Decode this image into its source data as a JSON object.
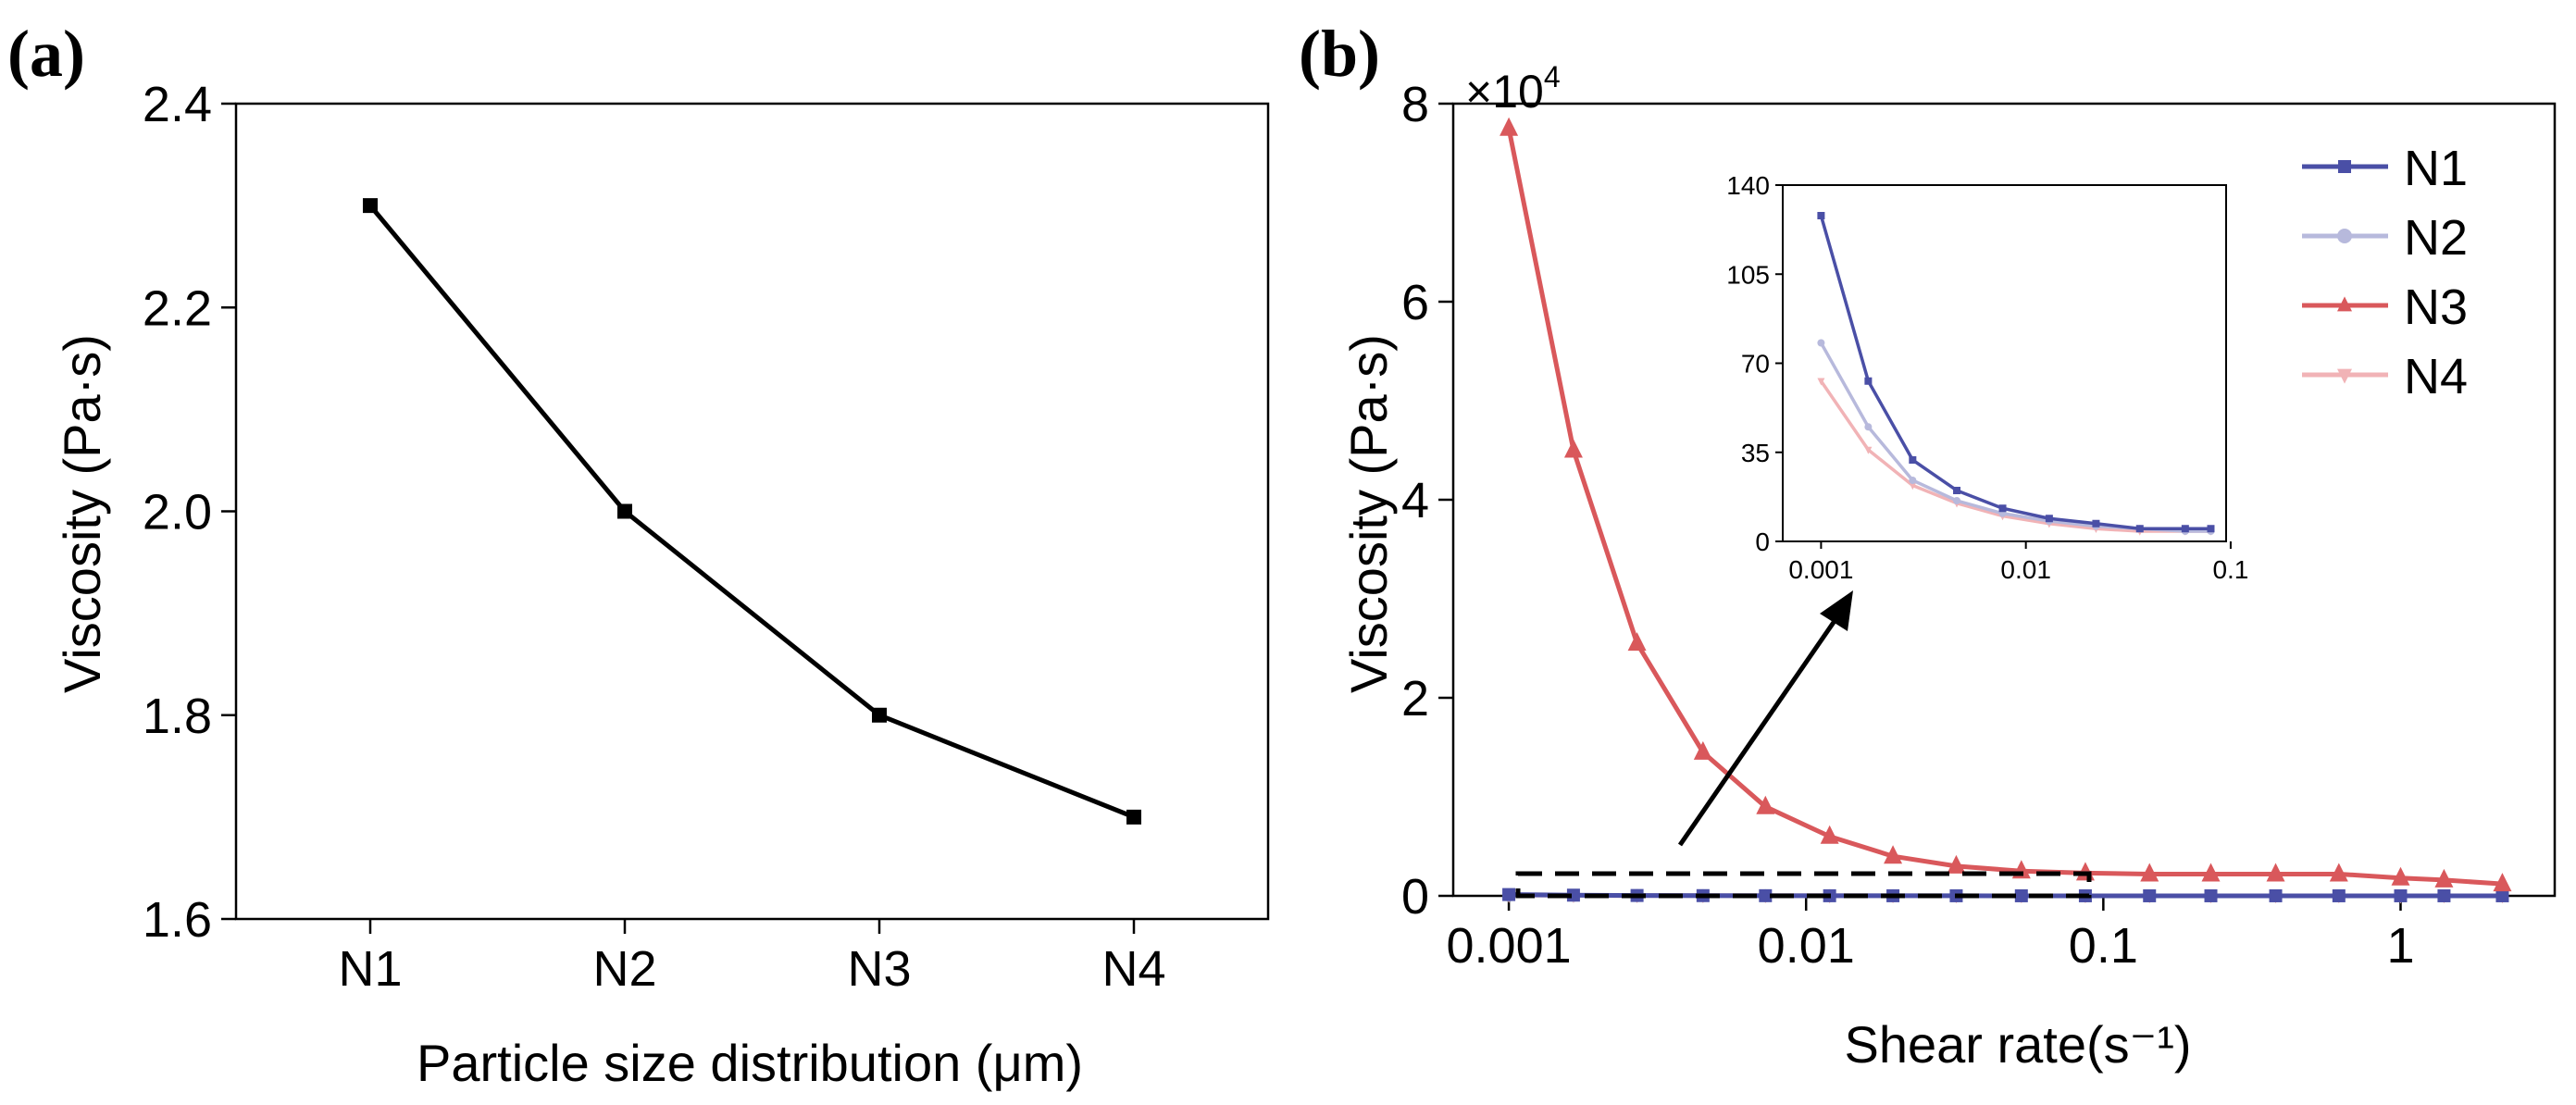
{
  "chart_data": [
    {
      "panel_label": "(a)",
      "type": "line",
      "title": "",
      "xlabel": "Particle size distribution (μm)",
      "ylabel": "Viscosity (Pa·s)",
      "categories": [
        "N1",
        "N2",
        "N3",
        "N4"
      ],
      "series": [
        {
          "values": [
            2.3,
            2.0,
            1.8,
            1.7
          ],
          "color": "#000000",
          "marker": "square"
        }
      ],
      "ylim": [
        1.6,
        2.4
      ],
      "yticks": [
        1.6,
        1.8,
        2.0,
        2.2,
        2.4
      ],
      "ytick_labels": [
        "1.6",
        "1.8",
        "2.0",
        "2.2",
        "2.4"
      ],
      "grid": false,
      "legend": "none"
    },
    {
      "panel_label": "(b)",
      "type": "line",
      "title": "",
      "xlabel": "Shear rate(s⁻¹)",
      "ylabel": "Viscosity (Pa·s)",
      "x_scale": "log",
      "xlim": [
        0.00065,
        3.3
      ],
      "xticks": [
        0.001,
        0.01,
        0.1,
        1
      ],
      "xtick_labels": [
        "0.001",
        "0.01",
        "0.1",
        "1"
      ],
      "ylim": [
        0,
        80000
      ],
      "yticks": [
        0,
        20000,
        40000,
        60000,
        80000
      ],
      "ytick_labels": [
        "0",
        "2",
        "4",
        "6",
        "8"
      ],
      "y_multiplier_label": "×10",
      "y_multiplier_exponent": "4",
      "legend": "top-right",
      "grid": false,
      "x": [
        0.001,
        0.00165,
        0.0027,
        0.0045,
        0.0073,
        0.012,
        0.0196,
        0.032,
        0.053,
        0.087,
        0.143,
        0.23,
        0.38,
        0.62,
        1.0,
        1.4,
        2.2
      ],
      "series": [
        {
          "name": "N1",
          "color": "#4a4fa6",
          "marker": "square",
          "values": [
            130,
            70,
            35,
            22,
            15,
            10,
            8,
            6,
            5,
            4,
            4,
            4,
            4,
            4,
            4,
            4,
            4
          ]
        },
        {
          "name": "N2",
          "color": "#b7b9dc",
          "marker": "circle",
          "values": [
            80,
            45,
            24,
            16,
            11,
            8,
            6,
            5,
            4,
            4,
            3,
            3,
            3,
            3,
            3,
            3,
            3
          ]
        },
        {
          "name": "N3",
          "color": "#d9585b",
          "marker": "triangle-up",
          "values": [
            77500,
            45000,
            25500,
            14500,
            9000,
            6000,
            4000,
            3000,
            2500,
            2300,
            2200,
            2200,
            2200,
            2200,
            1800,
            1600,
            1200
          ]
        },
        {
          "name": "N4",
          "color": "#f1b3b6",
          "marker": "triangle-down",
          "values": [
            62,
            35,
            21,
            14,
            10,
            7,
            5,
            4,
            3,
            3,
            3,
            3,
            3,
            3,
            3,
            3,
            3
          ]
        }
      ],
      "inset": {
        "x_scale": "log",
        "xlim": [
          0.00065,
          0.095
        ],
        "xticks": [
          0.001,
          0.01,
          0.1
        ],
        "xtick_labels": [
          "0.001",
          "0.01",
          "0.1"
        ],
        "ylim": [
          0,
          140
        ],
        "yticks": [
          0,
          35,
          70,
          105,
          140
        ],
        "ytick_labels": [
          "0",
          "35",
          "70",
          "105",
          "140"
        ],
        "x": [
          0.001,
          0.0017,
          0.0028,
          0.0046,
          0.0077,
          0.013,
          0.022,
          0.036,
          0.06,
          0.08
        ],
        "series": [
          {
            "name": "N1",
            "values": [
              128,
              63,
              32,
              20,
              13,
              9,
              7,
              5,
              5,
              5
            ]
          },
          {
            "name": "N2",
            "values": [
              78,
              45,
              24,
              16,
              11,
              8,
              6,
              5,
              4,
              4
            ]
          },
          {
            "name": "N4",
            "values": [
              63,
              36,
              22,
              15,
              10,
              7,
              5,
              4,
              4,
              4
            ]
          }
        ]
      }
    }
  ]
}
